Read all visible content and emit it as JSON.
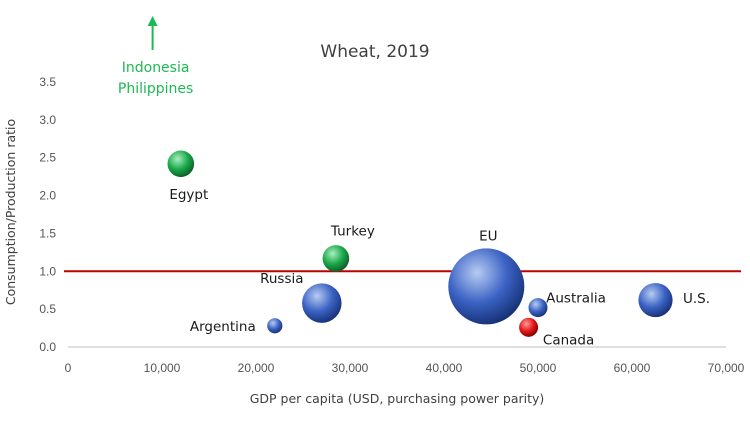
{
  "chart_data": {
    "type": "scatter",
    "title": "Wheat, 2019",
    "xlabel": "GDP per capita (USD, purchasing power parity)",
    "ylabel": "Consumption/Production ratio",
    "xlim": [
      0,
      70000
    ],
    "ylim": [
      0,
      3.5
    ],
    "x_ticks": [
      "0",
      "10,000",
      "20,000",
      "30,000",
      "40,000",
      "50,000",
      "60,000",
      "70,000"
    ],
    "y_ticks": [
      "0.0",
      "0.5",
      "1.0",
      "1.5",
      "2.0",
      "2.5",
      "3.0",
      "3.5"
    ],
    "grid": false,
    "reference_line": {
      "y": 1.0,
      "color": "#c00000"
    },
    "points": [
      {
        "label": "Egypt",
        "x": 12000,
        "y": 2.42,
        "relative_size": 0.35,
        "color": "green"
      },
      {
        "label": "Turkey",
        "x": 28500,
        "y": 1.17,
        "relative_size": 0.35,
        "color": "green"
      },
      {
        "label": "Russia",
        "x": 27000,
        "y": 0.58,
        "relative_size": 0.52,
        "color": "blue"
      },
      {
        "label": "Argentina",
        "x": 22000,
        "y": 0.28,
        "relative_size": 0.2,
        "color": "blue"
      },
      {
        "label": "EU",
        "x": 44500,
        "y": 0.8,
        "relative_size": 1.0,
        "color": "blue"
      },
      {
        "label": "Australia",
        "x": 50000,
        "y": 0.52,
        "relative_size": 0.25,
        "color": "blue"
      },
      {
        "label": "Canada",
        "x": 49000,
        "y": 0.26,
        "relative_size": 0.25,
        "color": "red"
      },
      {
        "label": "U.S.",
        "x": 62500,
        "y": 0.62,
        "relative_size": 0.45,
        "color": "blue"
      }
    ],
    "offscale_annotation": {
      "lines": [
        "Indonesia",
        "Philippines"
      ],
      "x": 9000,
      "color": "#1db954",
      "note_arrow": "up"
    },
    "colors": {
      "green": [
        "#a8f0bf",
        "#1aa84a",
        "#0a5a22"
      ],
      "blue": [
        "#b6ccf2",
        "#3b62c4",
        "#142f72"
      ],
      "red": [
        "#ff9a9a",
        "#e51515",
        "#7a0000"
      ]
    }
  }
}
